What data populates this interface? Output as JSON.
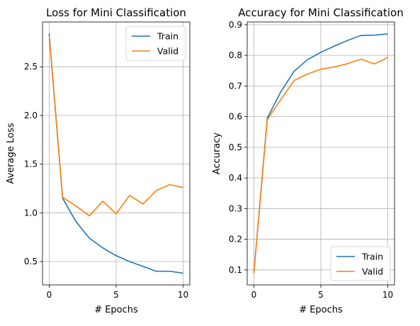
{
  "chart_data": [
    {
      "type": "line",
      "title": "Loss for Mini Classification",
      "xlabel": "# Epochs",
      "ylabel": "Average Loss",
      "x": [
        0,
        1,
        2,
        3,
        4,
        5,
        6,
        7,
        8,
        9,
        10
      ],
      "series": [
        {
          "name": "Train",
          "color": "#1f77b4",
          "values": [
            2.84,
            1.15,
            0.91,
            0.74,
            0.64,
            0.56,
            0.5,
            0.45,
            0.4,
            0.4,
            0.38
          ]
        },
        {
          "name": "Valid",
          "color": "#ff7f0e",
          "values": [
            2.82,
            1.16,
            1.07,
            0.97,
            1.12,
            0.99,
            1.18,
            1.09,
            1.23,
            1.29,
            1.26
          ]
        }
      ],
      "xlim": [
        -0.5,
        10.5
      ],
      "ylim": [
        0.26,
        2.96
      ],
      "xticks": [
        0,
        5,
        10
      ],
      "yticks": [
        0.5,
        1.0,
        1.5,
        2.0,
        2.5
      ],
      "ytick_labels": [
        "0.5",
        "1.0",
        "1.5",
        "2.0",
        "2.5"
      ],
      "grid": true,
      "legend": "top-right"
    },
    {
      "type": "line",
      "title": "Accuracy for Mini Classification",
      "xlabel": "# Epochs",
      "ylabel": "Accuracy",
      "x": [
        0,
        1,
        2,
        3,
        4,
        5,
        6,
        7,
        8,
        9,
        10
      ],
      "series": [
        {
          "name": "Train",
          "color": "#1f77b4",
          "values": [
            0.09,
            0.595,
            0.68,
            0.748,
            0.786,
            0.81,
            0.83,
            0.849,
            0.865,
            0.866,
            0.87
          ]
        },
        {
          "name": "Valid",
          "color": "#ff7f0e",
          "values": [
            0.09,
            0.59,
            0.655,
            0.718,
            0.739,
            0.755,
            0.762,
            0.773,
            0.788,
            0.772,
            0.793
          ]
        }
      ],
      "xlim": [
        -0.5,
        10.5
      ],
      "ylim": [
        0.051,
        0.909
      ],
      "xticks": [
        0,
        5,
        10
      ],
      "yticks": [
        0.1,
        0.2,
        0.3,
        0.4,
        0.5,
        0.6,
        0.7,
        0.8,
        0.9
      ],
      "ytick_labels": [
        "0.1",
        "0.2",
        "0.3",
        "0.4",
        "0.5",
        "0.6",
        "0.7",
        "0.8",
        "0.9"
      ],
      "grid": true,
      "legend": "bottom-right"
    }
  ]
}
